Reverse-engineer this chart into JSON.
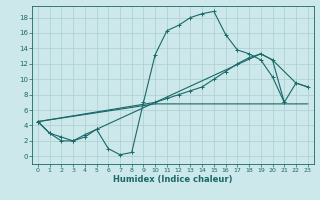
{
  "xlabel": "Humidex (Indice chaleur)",
  "bg_color": "#cce8ea",
  "grid_color": "#aacfd2",
  "line_color": "#1a6868",
  "xlim": [
    -0.5,
    23.5
  ],
  "ylim": [
    -1.0,
    19.5
  ],
  "xticks": [
    0,
    1,
    2,
    3,
    4,
    5,
    6,
    7,
    8,
    9,
    10,
    11,
    12,
    13,
    14,
    15,
    16,
    17,
    18,
    19,
    20,
    21,
    22,
    23
  ],
  "yticks": [
    0,
    2,
    4,
    6,
    8,
    10,
    12,
    14,
    16,
    18
  ],
  "series": [
    {
      "x": [
        0,
        1,
        2,
        3,
        4,
        5,
        6,
        7,
        8,
        9,
        10,
        11,
        12,
        13,
        14,
        15,
        16,
        17,
        18,
        19,
        20,
        21
      ],
      "y": [
        4.5,
        3.0,
        2.0,
        2.0,
        2.8,
        3.5,
        1.0,
        0.2,
        0.5,
        7.0,
        13.2,
        16.3,
        17.0,
        18.0,
        18.5,
        18.8,
        15.8,
        13.8,
        13.3,
        12.5,
        10.3,
        7.0
      ],
      "marker": true
    },
    {
      "x": [
        0,
        1,
        2,
        3,
        4,
        5,
        10,
        11,
        12,
        13,
        14,
        15,
        16,
        17,
        18,
        19,
        20,
        21,
        22,
        23
      ],
      "y": [
        4.5,
        3.0,
        2.5,
        2.0,
        2.5,
        3.5,
        7.0,
        7.5,
        8.0,
        8.5,
        9.0,
        10.0,
        11.0,
        12.0,
        12.8,
        13.3,
        12.5,
        7.0,
        9.5,
        9.0
      ],
      "marker": true
    },
    {
      "x": [
        0,
        10,
        19,
        20,
        22,
        23
      ],
      "y": [
        4.5,
        7.0,
        13.3,
        12.5,
        9.5,
        9.0
      ],
      "marker": false
    },
    {
      "x": [
        0,
        10,
        23
      ],
      "y": [
        4.5,
        6.8,
        6.8
      ],
      "marker": false
    }
  ]
}
